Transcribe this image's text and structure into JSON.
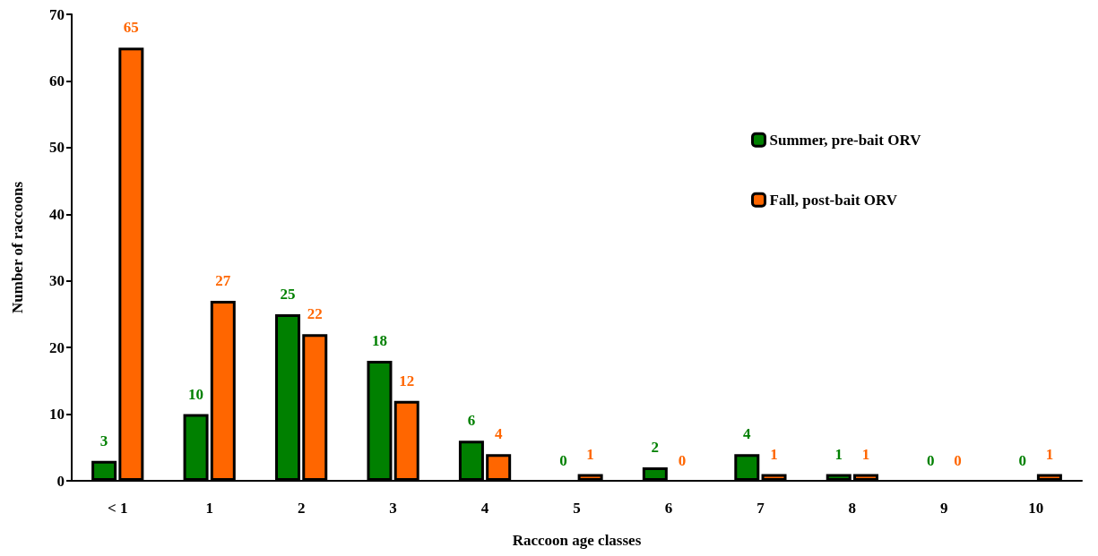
{
  "chart_data": {
    "type": "bar",
    "xlabel": "Raccoon age classes",
    "ylabel": "Number of raccoons",
    "categories": [
      "< 1",
      "1",
      "2",
      "3",
      "4",
      "5",
      "6",
      "7",
      "8",
      "9",
      "10"
    ],
    "series": [
      {
        "name": "Summer, pre-bait ORV",
        "color": "#008000",
        "values": [
          3,
          10,
          25,
          18,
          6,
          0,
          2,
          4,
          1,
          0,
          0
        ]
      },
      {
        "name": "Fall, post-bait ORV",
        "color": "#ff6600",
        "values": [
          65,
          27,
          22,
          12,
          4,
          1,
          0,
          1,
          1,
          0,
          1
        ]
      }
    ],
    "ylim": [
      0,
      70
    ],
    "yticks": [
      0,
      10,
      20,
      30,
      40,
      50,
      60,
      70
    ],
    "grid": false,
    "legend": "top right",
    "data_labels": true
  }
}
